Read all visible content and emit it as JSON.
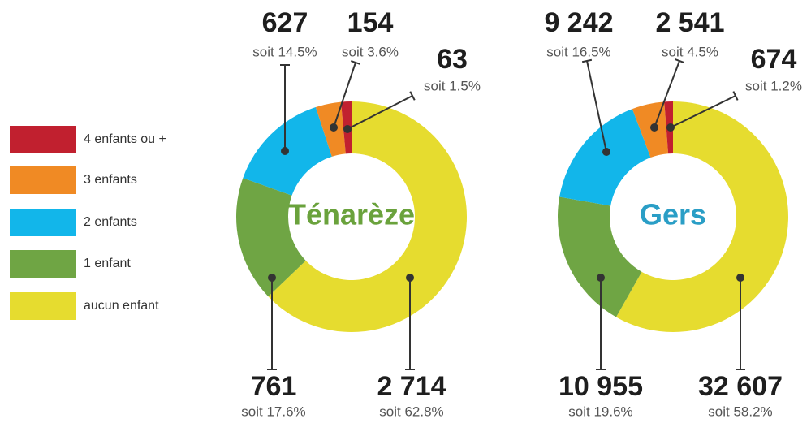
{
  "chart_data": [
    {
      "type": "pie",
      "title": "Ténarèze",
      "categories": [
        "4 enfants ou +",
        "3 enfants",
        "2 enfants",
        "1 enfant",
        "aucun enfant"
      ],
      "colors": [
        "#c1202f",
        "#f08a24",
        "#12b6ea",
        "#6fa544",
        "#e6dc2f"
      ],
      "values": [
        63,
        154,
        627,
        761,
        2714
      ],
      "value_labels": [
        "63",
        "154",
        "627",
        "761",
        "2 714"
      ],
      "shares": [
        1.5,
        3.6,
        14.5,
        17.6,
        62.8
      ],
      "share_labels": [
        "soit 1.5%",
        "soit 3.6%",
        "soit 14.5%",
        "soit 17.6%",
        "soit 62.8%"
      ],
      "title_color": "#6aa23c"
    },
    {
      "type": "pie",
      "title": "Gers",
      "categories": [
        "4 enfants ou +",
        "3 enfants",
        "2 enfants",
        "1 enfant",
        "aucun enfant"
      ],
      "colors": [
        "#c1202f",
        "#f08a24",
        "#12b6ea",
        "#6fa544",
        "#e6dc2f"
      ],
      "values": [
        674,
        2541,
        9242,
        10955,
        32607
      ],
      "value_labels": [
        "674",
        "2 541",
        "9 242",
        "10 955",
        "32 607"
      ],
      "shares": [
        1.2,
        4.5,
        16.5,
        19.6,
        58.2
      ],
      "share_labels": [
        "soit 1.2%",
        "soit 4.5%",
        "soit 16.5%",
        "soit 19.6%",
        "soit 58.2%"
      ],
      "title_color": "#2a9ec6"
    }
  ]
}
